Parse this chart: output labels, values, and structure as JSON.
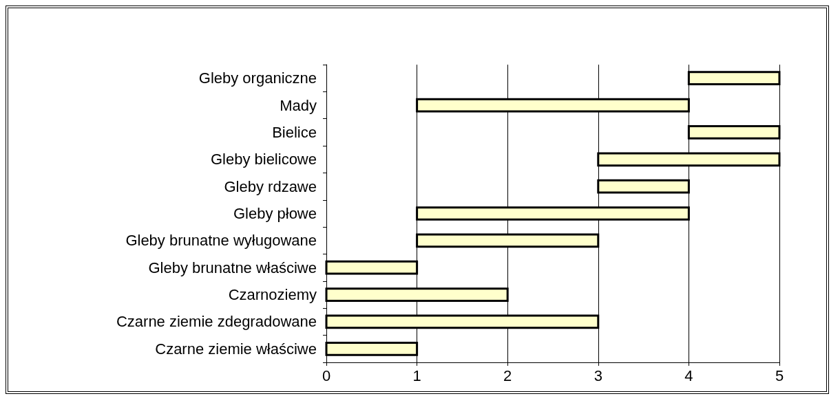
{
  "chart_data": {
    "type": "bar",
    "orientation": "horizontal",
    "categories": [
      "Gleby organiczne",
      "Mady",
      "Bielice",
      "Gleby bielicowe",
      "Gleby rdzawe",
      "Gleby płowe",
      "Gleby brunatne wyługowane",
      "Gleby brunatne właściwe",
      "Czarnoziemy",
      "Czarne ziemie zdegradowane",
      "Czarne ziemie właściwe"
    ],
    "base": [
      4,
      1,
      4,
      3,
      3,
      1,
      1,
      0,
      0,
      0,
      0
    ],
    "values": [
      1,
      3,
      1,
      2,
      1,
      3,
      2,
      1,
      2,
      3,
      1
    ],
    "color": "#ffffcc",
    "xlim": [
      0,
      5
    ],
    "xticks": [
      0,
      1,
      2,
      3,
      4,
      5
    ],
    "grid": "x"
  }
}
